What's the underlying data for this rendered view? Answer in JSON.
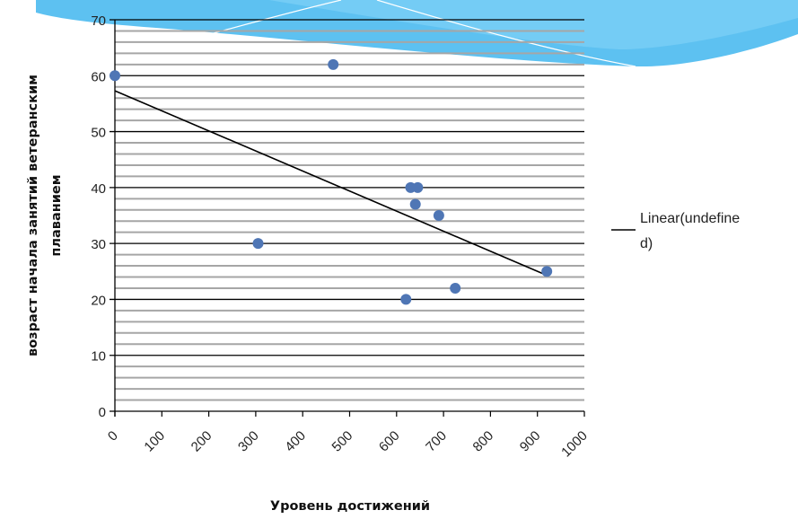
{
  "chart_data": {
    "type": "scatter",
    "xlabel": "Уровень достижений",
    "ylabel": "возраст начала занятий ветеранским плаванием",
    "xlim": [
      0,
      1000
    ],
    "ylim": [
      0,
      70
    ],
    "x_ticks": [
      "0",
      "100",
      "200",
      "300",
      "400",
      "500",
      "600",
      "700",
      "800",
      "900",
      "1000"
    ],
    "y_ticks": [
      "0",
      "10",
      "20",
      "30",
      "40",
      "50",
      "60",
      "70"
    ],
    "grid": "horizontal major and minor gridlines",
    "legend_position": "right",
    "series": [
      {
        "points": [
          {
            "x": 0,
            "y": 60
          },
          {
            "x": 465,
            "y": 62
          },
          {
            "x": 305,
            "y": 30
          },
          {
            "x": 630,
            "y": 40
          },
          {
            "x": 645,
            "y": 40
          },
          {
            "x": 640,
            "y": 37
          },
          {
            "x": 690,
            "y": 35
          },
          {
            "x": 920,
            "y": 25
          },
          {
            "x": 620,
            "y": 20
          },
          {
            "x": 725,
            "y": 22
          }
        ],
        "color": "#4f76b5"
      }
    ],
    "trendline": {
      "name": "Linear(undefined)",
      "legend_lines": [
        "Linear(undefine",
        "d)"
      ],
      "type": "linear",
      "from": {
        "x": 0,
        "y": 57.3
      },
      "to": {
        "x": 920,
        "y": 24.3
      },
      "color": "#000000"
    }
  },
  "colors": {
    "marker": "#4f76b5",
    "gridline_major": "#000000",
    "gridline_minor": "#a6a6a6",
    "decoration_wave": "#41b6ee"
  }
}
